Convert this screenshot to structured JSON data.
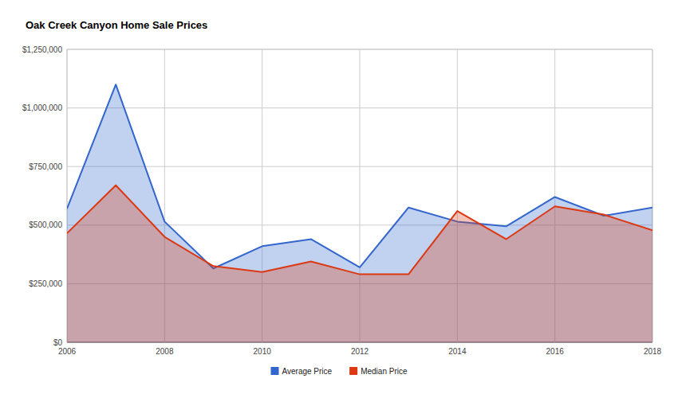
{
  "chart_data": {
    "type": "area",
    "title": "Oak Creek Canyon Home Sale Prices",
    "x": [
      2006,
      2007,
      2008,
      2009,
      2010,
      2011,
      2012,
      2013,
      2014,
      2015,
      2016,
      2017,
      2018
    ],
    "series": [
      {
        "name": "Average Price",
        "color": "#3366cc",
        "values": [
          570000,
          1100000,
          515000,
          315000,
          410000,
          440000,
          320000,
          575000,
          515000,
          495000,
          620000,
          540000,
          575000
        ]
      },
      {
        "name": "Median Price",
        "color": "#dc3912",
        "values": [
          465000,
          670000,
          450000,
          325000,
          300000,
          345000,
          290000,
          290000,
          560000,
          440000,
          580000,
          545000,
          478000
        ]
      }
    ],
    "xlim": [
      2006,
      2018
    ],
    "xticks": [
      2006,
      2008,
      2010,
      2012,
      2014,
      2016,
      2018
    ],
    "ylim": [
      0,
      1250000
    ],
    "yticks": [
      {
        "value": 0,
        "label": "$0"
      },
      {
        "value": 250000,
        "label": "$250,000"
      },
      {
        "value": 500000,
        "label": "$500,000"
      },
      {
        "value": 750000,
        "label": "$750,000"
      },
      {
        "value": 1000000,
        "label": "$1,000,000"
      },
      {
        "value": 1250000,
        "label": "$1,250,000"
      }
    ],
    "grid": true,
    "legend": "bottom"
  }
}
